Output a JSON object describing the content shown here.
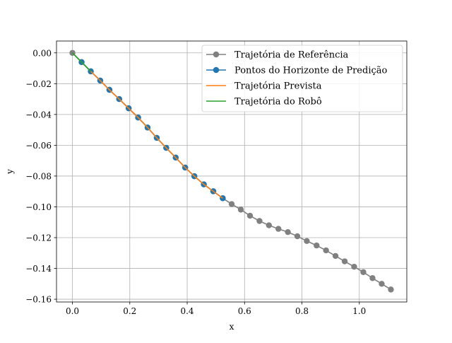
{
  "chart_data": {
    "type": "line",
    "title": "",
    "xlabel": "x",
    "ylabel": "y",
    "xlim": [
      -0.0555,
      1.1655
    ],
    "ylim": [
      -0.1618,
      0.0077
    ],
    "xticks": [
      0.0,
      0.2,
      0.4,
      0.6,
      0.8,
      1.0
    ],
    "xtick_labels": [
      "0.0",
      "0.2",
      "0.4",
      "0.6",
      "0.8",
      "1.0"
    ],
    "yticks": [
      0.0,
      -0.02,
      -0.04,
      -0.06,
      -0.08,
      -0.1,
      -0.12,
      -0.14,
      -0.16
    ],
    "ytick_labels": [
      "0.00",
      "−0.02",
      "−0.04",
      "−0.06",
      "−0.08",
      "−0.10",
      "−0.12",
      "−0.14",
      "−0.16"
    ],
    "grid": true,
    "legend_position": "top-right",
    "series": [
      {
        "name": "Trajetória de Referência",
        "color": "#808080",
        "style": "line-marker",
        "x": [
          0.0,
          0.032,
          0.064,
          0.097,
          0.129,
          0.163,
          0.196,
          0.229,
          0.262,
          0.294,
          0.327,
          0.36,
          0.393,
          0.425,
          0.458,
          0.491,
          0.524,
          0.555,
          0.587,
          0.619,
          0.652,
          0.685,
          0.718,
          0.751,
          0.784,
          0.817,
          0.851,
          0.884,
          0.917,
          0.949,
          0.982,
          1.014,
          1.046,
          1.078,
          1.11
        ],
        "y": [
          0.0,
          -0.006,
          -0.012,
          -0.018,
          -0.024,
          -0.03,
          -0.036,
          -0.042,
          -0.0485,
          -0.0552,
          -0.0617,
          -0.068,
          -0.0745,
          -0.0801,
          -0.0854,
          -0.0899,
          -0.0944,
          -0.0982,
          -0.1018,
          -0.1058,
          -0.1092,
          -0.112,
          -0.1143,
          -0.1164,
          -0.1191,
          -0.1222,
          -0.1251,
          -0.1283,
          -0.1319,
          -0.1354,
          -0.1389,
          -0.1424,
          -0.1463,
          -0.15,
          -0.1537
        ]
      },
      {
        "name": "Pontos do Horizonte de Predição",
        "color": "#1f77b4",
        "style": "line-marker",
        "x": [
          0.032,
          0.064,
          0.097,
          0.129,
          0.163,
          0.196,
          0.229,
          0.262,
          0.294,
          0.327,
          0.36,
          0.393,
          0.425,
          0.458,
          0.491,
          0.524
        ],
        "y": [
          -0.006,
          -0.012,
          -0.018,
          -0.024,
          -0.03,
          -0.036,
          -0.042,
          -0.0485,
          -0.0552,
          -0.0617,
          -0.068,
          -0.0745,
          -0.0801,
          -0.0854,
          -0.0899,
          -0.0944
        ]
      },
      {
        "name": "Trajetória Prevista",
        "color": "#ff7f0e",
        "style": "line",
        "x": [
          0.064,
          0.097,
          0.129,
          0.163,
          0.196,
          0.229,
          0.262,
          0.294,
          0.327,
          0.36,
          0.393,
          0.425,
          0.458,
          0.491,
          0.524
        ],
        "y": [
          -0.012,
          -0.018,
          -0.024,
          -0.03,
          -0.036,
          -0.042,
          -0.0485,
          -0.0552,
          -0.0617,
          -0.068,
          -0.0745,
          -0.0801,
          -0.0854,
          -0.0899,
          -0.0944
        ]
      },
      {
        "name": "Trajetória do Robô",
        "color": "#2ca02c",
        "style": "line",
        "x": [
          0.0,
          0.032,
          0.064
        ],
        "y": [
          0.0,
          -0.006,
          -0.012
        ]
      }
    ]
  }
}
